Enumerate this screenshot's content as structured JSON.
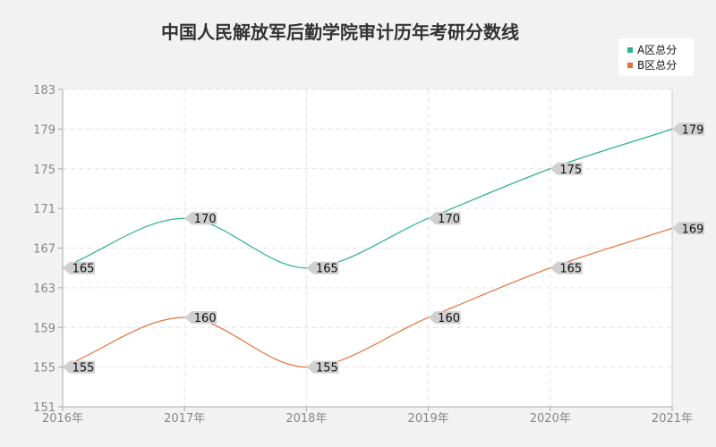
{
  "chart_data": {
    "type": "line",
    "title": "中国人民解放军后勤学院审计历年考研分数线",
    "xlabel": "",
    "ylabel": "",
    "categories": [
      "2016年",
      "2017年",
      "2018年",
      "2019年",
      "2020年",
      "2021年"
    ],
    "ylim": [
      151,
      183
    ],
    "yticks": [
      "151",
      "155",
      "159",
      "163",
      "167",
      "171",
      "175",
      "179",
      "183"
    ],
    "grid": true,
    "legend_position": "top-right",
    "series": [
      {
        "name": "A区总分",
        "color": "#2bb38a",
        "values": [
          165,
          170,
          165,
          170,
          175,
          179
        ]
      },
      {
        "name": "B区总分",
        "color": "#e8703a",
        "values": [
          155,
          160,
          155,
          160,
          165,
          169
        ]
      }
    ]
  }
}
